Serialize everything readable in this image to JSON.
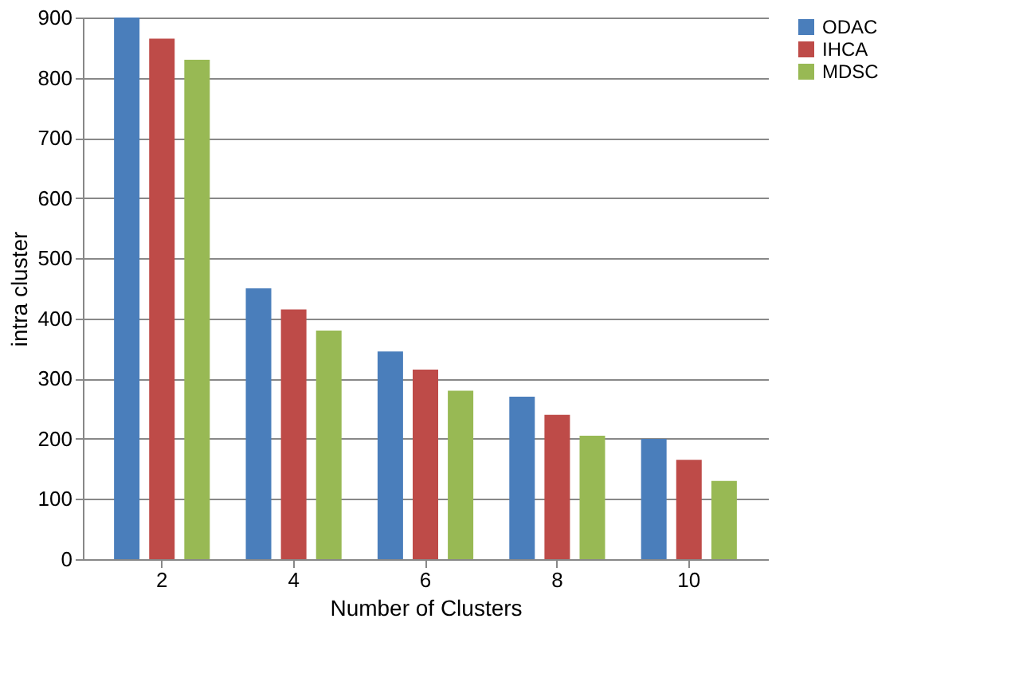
{
  "chart_data": {
    "type": "bar",
    "xlabel": "Number of Clusters",
    "ylabel": "intra cluster",
    "categories": [
      "2",
      "4",
      "6",
      "8",
      "10"
    ],
    "series": [
      {
        "name": "ODAC",
        "color": "#4a7ebb",
        "values": [
          900,
          450,
          345,
          270,
          200
        ]
      },
      {
        "name": "IHCA",
        "color": "#be4b48",
        "values": [
          865,
          415,
          315,
          240,
          165
        ]
      },
      {
        "name": "MDSC",
        "color": "#98b954",
        "values": [
          830,
          380,
          280,
          205,
          130
        ]
      }
    ],
    "ylim": [
      0,
      900
    ],
    "yticks": [
      0,
      100,
      200,
      300,
      400,
      500,
      600,
      700,
      800,
      900
    ],
    "grid": "y",
    "legend": "right"
  }
}
